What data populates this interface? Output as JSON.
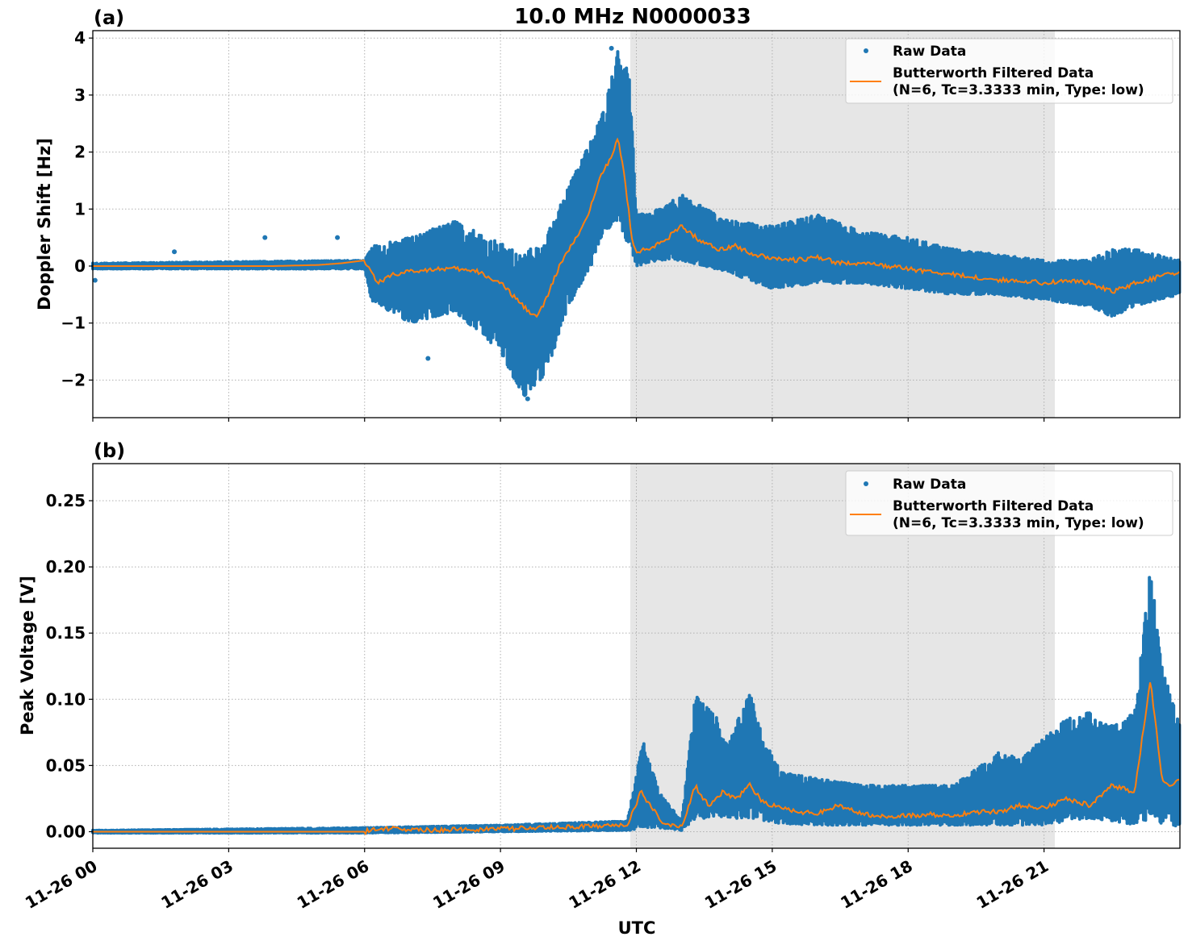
{
  "figure": {
    "title": "10.0 MHz N0000033",
    "xlabel": "UTC",
    "x_tick_labels": [
      "11-26 00",
      "11-26 03",
      "11-26 06",
      "11-26 09",
      "11-26 12",
      "11-26 15",
      "11-26 18",
      "11-26 21"
    ],
    "shaded_region_hours": [
      11.87,
      21.25
    ],
    "colors": {
      "raw": "#1f77b4",
      "filtered": "#ff7f0e",
      "shade": "#e6e6e6",
      "grid": "#b0b0b0"
    },
    "legend": {
      "raw_label": "Raw Data",
      "filtered_label_line1": "Butterworth Filtered Data",
      "filtered_label_line2": "(N=6, Tc=3.3333 min, Type: low)"
    }
  },
  "panel_a": {
    "label": "(a)",
    "ylabel": "Doppler Shift [Hz]",
    "y_tick_labels": [
      "4",
      "3",
      "2",
      "1",
      "0",
      "−1",
      "−2"
    ]
  },
  "panel_b": {
    "label": "(b)",
    "ylabel": "Peak Voltage [V]",
    "y_tick_labels": [
      "0.25",
      "0.20",
      "0.15",
      "0.10",
      "0.05",
      "0.00"
    ]
  },
  "chart_data": [
    {
      "type": "scatter",
      "title": "10.0 MHz N0000033",
      "panel": "(a)",
      "xlabel": "",
      "ylabel": "Doppler Shift [Hz]",
      "x_unit": "hours UTC since 11-26 00:00",
      "xlim": [
        0,
        24
      ],
      "ylim": [
        -2.66,
        4.13
      ],
      "yticks": [
        -2,
        -1,
        0,
        1,
        2,
        3,
        4
      ],
      "grid": true,
      "legend_position": "upper right",
      "shaded_region_hours": [
        11.87,
        21.25
      ],
      "series": [
        {
          "name": "Butterworth Filtered Data (N=6, Tc=3.3333 min, Type: low)",
          "style": "line",
          "x": [
            0,
            1,
            2,
            3,
            4,
            5,
            5.5,
            6.0,
            6.15,
            6.3,
            6.6,
            7.0,
            7.5,
            8.0,
            8.5,
            9.0,
            9.5,
            9.8,
            10.0,
            10.3,
            10.6,
            10.9,
            11.2,
            11.45,
            11.6,
            11.75,
            11.9,
            12.0,
            12.3,
            12.7,
            13.0,
            13.4,
            13.8,
            14.2,
            14.6,
            15.0,
            15.5,
            16.0,
            16.5,
            17.0,
            17.5,
            18.0,
            18.5,
            19.0,
            19.5,
            20.0,
            20.5,
            21.0,
            21.5,
            22.0,
            22.5,
            23.0,
            23.5,
            24.0
          ],
          "y": [
            0.0,
            0.0,
            0.0,
            0.0,
            0.0,
            0.02,
            0.05,
            0.1,
            -0.1,
            -0.3,
            -0.15,
            -0.1,
            -0.05,
            -0.05,
            -0.1,
            -0.3,
            -0.7,
            -0.9,
            -0.6,
            0.0,
            0.4,
            0.8,
            1.6,
            1.9,
            2.25,
            1.5,
            0.5,
            0.25,
            0.3,
            0.5,
            0.7,
            0.45,
            0.3,
            0.35,
            0.2,
            0.15,
            0.1,
            0.15,
            0.05,
            0.05,
            0.0,
            -0.05,
            -0.1,
            -0.15,
            -0.2,
            -0.25,
            -0.25,
            -0.3,
            -0.25,
            -0.3,
            -0.45,
            -0.3,
            -0.2,
            -0.1
          ]
        },
        {
          "name": "Raw Data",
          "style": "markers",
          "envelope_x": [
            0,
            6.0,
            6.15,
            7.0,
            8.0,
            9.0,
            9.5,
            10.0,
            10.5,
            11.0,
            11.3,
            11.6,
            11.85,
            12.0,
            12.5,
            13.0,
            14.0,
            15.0,
            16.0,
            17.0,
            18.0,
            19.0,
            20.0,
            21.0,
            22.0,
            22.5,
            23.0,
            24.0
          ],
          "envelope_max": [
            0.05,
            0.1,
            0.35,
            0.5,
            0.8,
            0.4,
            0.2,
            0.5,
            1.4,
            2.2,
            2.8,
            3.8,
            3.4,
            0.9,
            1.0,
            1.25,
            0.8,
            0.7,
            0.9,
            0.6,
            0.5,
            0.3,
            0.2,
            0.1,
            0.1,
            0.3,
            0.3,
            0.1
          ],
          "envelope_min": [
            -0.05,
            -0.05,
            -0.6,
            -1.0,
            -0.8,
            -1.5,
            -2.3,
            -1.9,
            -0.7,
            0.0,
            0.6,
            0.8,
            0.3,
            0.0,
            0.1,
            0.1,
            -0.1,
            -0.4,
            -0.3,
            -0.3,
            -0.4,
            -0.5,
            -0.5,
            -0.6,
            -0.7,
            -0.9,
            -0.7,
            -0.5
          ],
          "outliers": [
            {
              "x": 1.8,
              "y": 0.25
            },
            {
              "x": 3.8,
              "y": 0.5
            },
            {
              "x": 5.4,
              "y": 0.5
            },
            {
              "x": 0.05,
              "y": -0.25
            },
            {
              "x": 7.4,
              "y": -1.62
            },
            {
              "x": 9.6,
              "y": -2.33
            },
            {
              "x": 11.45,
              "y": 3.82
            }
          ]
        }
      ]
    },
    {
      "type": "scatter",
      "panel": "(b)",
      "xlabel": "UTC",
      "ylabel": "Peak Voltage [V]",
      "x_unit": "hours UTC since 11-26 00:00",
      "x_tick_labels": [
        "11-26 00",
        "11-26 03",
        "11-26 06",
        "11-26 09",
        "11-26 12",
        "11-26 15",
        "11-26 18",
        "11-26 21"
      ],
      "xlim": [
        0,
        24
      ],
      "ylim": [
        -0.0125,
        0.278
      ],
      "yticks": [
        0.0,
        0.05,
        0.1,
        0.15,
        0.2,
        0.25
      ],
      "grid": true,
      "legend_position": "upper right",
      "shaded_region_hours": [
        11.87,
        21.25
      ],
      "series": [
        {
          "name": "Butterworth Filtered Data (N=6, Tc=3.3333 min, Type: low)",
          "style": "line",
          "x": [
            0,
            6.0,
            6.1,
            6.8,
            7.0,
            9.0,
            10.0,
            11.0,
            11.8,
            12.1,
            12.3,
            12.6,
            13.0,
            13.3,
            13.4,
            13.6,
            13.9,
            14.2,
            14.5,
            14.8,
            15.2,
            15.6,
            16.0,
            16.5,
            17.0,
            17.5,
            18.0,
            18.5,
            19.0,
            19.5,
            20.0,
            20.5,
            21.0,
            21.5,
            22.0,
            22.5,
            23.0,
            23.35,
            23.6,
            23.8,
            24.0
          ],
          "y": [
            0.0,
            0.0,
            0.001,
            0.003,
            0.001,
            0.002,
            0.003,
            0.004,
            0.005,
            0.03,
            0.02,
            0.006,
            0.004,
            0.035,
            0.028,
            0.02,
            0.03,
            0.025,
            0.035,
            0.022,
            0.018,
            0.015,
            0.014,
            0.02,
            0.013,
            0.012,
            0.012,
            0.013,
            0.012,
            0.015,
            0.015,
            0.02,
            0.018,
            0.025,
            0.02,
            0.035,
            0.03,
            0.115,
            0.04,
            0.035,
            0.04
          ]
        },
        {
          "name": "Raw Data",
          "style": "markers",
          "envelope_x": [
            0,
            6.0,
            9.0,
            11.8,
            12.15,
            12.5,
            13.0,
            13.3,
            13.8,
            14.0,
            14.5,
            14.8,
            15.2,
            16.0,
            17.0,
            18.0,
            19.0,
            20.0,
            20.5,
            21.0,
            21.5,
            22.0,
            22.5,
            23.0,
            23.35,
            23.6,
            24.0
          ],
          "envelope_max": [
            0.001,
            0.003,
            0.005,
            0.008,
            0.07,
            0.03,
            0.008,
            0.103,
            0.085,
            0.065,
            0.106,
            0.07,
            0.045,
            0.04,
            0.035,
            0.035,
            0.035,
            0.06,
            0.055,
            0.072,
            0.085,
            0.09,
            0.08,
            0.09,
            0.2,
            0.125,
            0.08
          ],
          "envelope_min": [
            -0.001,
            -0.001,
            0.0,
            0.001,
            0.002,
            0.003,
            0.001,
            0.01,
            0.01,
            0.01,
            0.01,
            0.008,
            0.006,
            0.005,
            0.005,
            0.005,
            0.005,
            0.005,
            0.005,
            0.005,
            0.008,
            0.01,
            0.008,
            0.005,
            0.01,
            0.005,
            0.003
          ]
        }
      ]
    }
  ]
}
